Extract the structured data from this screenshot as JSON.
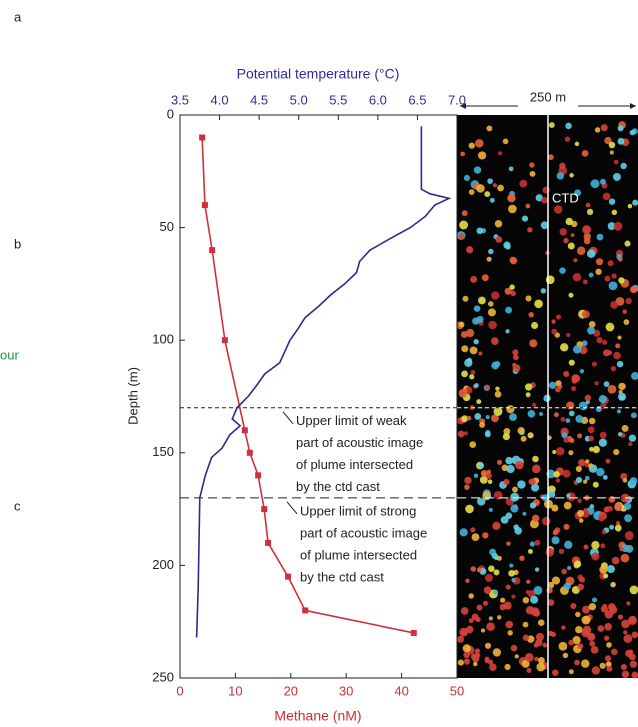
{
  "panel_labels": [
    "a",
    "b",
    "c"
  ],
  "side_text": "our",
  "chart_data": {
    "type": "profile",
    "y_label": "Depth (m)",
    "ylim": [
      0,
      250
    ],
    "yticks": [
      0,
      50,
      100,
      150,
      200,
      250
    ],
    "x_label": "Methane (nM)",
    "xlim": [
      0,
      50
    ],
    "xticks": [
      0,
      10,
      20,
      30,
      40,
      50
    ],
    "x_color": "#cc2f35",
    "x2_label": "Potential temperature (°C)",
    "x2lim": [
      3.5,
      7.0
    ],
    "x2ticks": [
      3.5,
      {
        "value": 4.0,
        "label": "4.0"
      },
      4.5,
      {
        "value": 5.0,
        "label": "5.0"
      },
      5.5,
      {
        "value": 6.0,
        "label": "6.0"
      },
      6.5,
      {
        "value": 7.0,
        "label": "7.0"
      }
    ],
    "x2_color": "#2d2d9a",
    "series": [
      {
        "color": "#d0303a",
        "axis": "x",
        "markers": true,
        "y": [
          10,
          40,
          60,
          100,
          140,
          150,
          160,
          175,
          190,
          205,
          220,
          230
        ],
        "values": [
          4.0,
          4.5,
          5.8,
          8.1,
          11.7,
          12.6,
          14.1,
          15.2,
          15.9,
          19.5,
          22.6,
          42.2
        ]
      },
      {
        "color": "#2b2b8c",
        "axis": "x2",
        "markers": false,
        "y": [
          5,
          33,
          35,
          37,
          40,
          45,
          50,
          55,
          60,
          65,
          70,
          75,
          80,
          85,
          90,
          95,
          100,
          110,
          115,
          120,
          125,
          130,
          135,
          138,
          142,
          148,
          152,
          160,
          170,
          190,
          210,
          232
        ],
        "values": [
          6.55,
          6.55,
          6.66,
          6.9,
          6.72,
          6.6,
          6.41,
          6.15,
          5.9,
          5.77,
          5.73,
          5.58,
          5.4,
          5.25,
          5.08,
          4.99,
          4.89,
          4.76,
          4.57,
          4.47,
          4.36,
          4.22,
          4.16,
          4.26,
          4.13,
          4.03,
          3.9,
          3.82,
          3.75,
          3.74,
          3.73,
          3.71
        ]
      }
    ],
    "annotations": [
      {
        "depth": 130,
        "lines": [
          "Upper limit of weak",
          "part of acoustic image",
          "of plume intersected",
          "by the ctd cast"
        ],
        "dash": "4,3"
      },
      {
        "depth": 170,
        "lines": [
          "Upper limit of strong",
          "part of acoustic image",
          "of plume intersected",
          "by the ctd cast"
        ],
        "dash": "9,5"
      }
    ],
    "image_labels": {
      "scale": "250 m",
      "cast": "CTD"
    }
  }
}
